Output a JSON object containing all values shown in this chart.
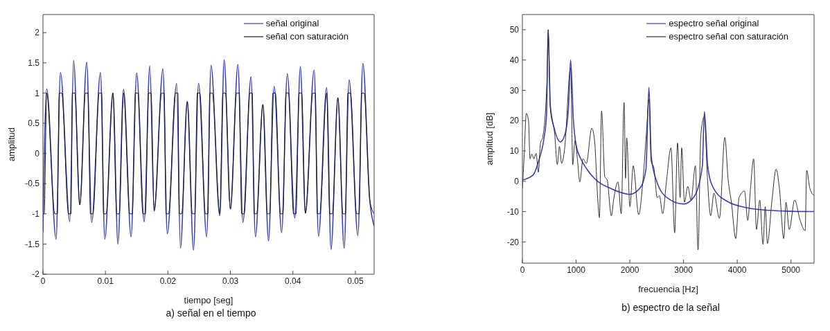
{
  "chart_data": [
    {
      "type": "line",
      "title": "a) señal en el tiempo",
      "xlabel": "tiempo [seg]",
      "ylabel": "amplitud",
      "xlim": [
        0,
        0.053
      ],
      "xticks": [
        0,
        0.01,
        0.02,
        0.03,
        0.04,
        0.05
      ],
      "ylim": [
        -2,
        2.3
      ],
      "yticks": [
        -2,
        -1.5,
        -1,
        -0.5,
        0,
        0.5,
        1,
        1.5,
        2
      ],
      "legend": "top right",
      "series": [
        {
          "name": "señal original",
          "color": "#3b3fb8",
          "x": [
            0,
            0.0006,
            0.0021,
            0.0028,
            0.0043,
            0.0049,
            0.0059,
            0.007,
            0.0078,
            0.0092,
            0.0099,
            0.0112,
            0.012,
            0.0129,
            0.0141,
            0.015,
            0.0162,
            0.0171,
            0.0178,
            0.0192,
            0.0199,
            0.0214,
            0.022,
            0.0231,
            0.0241,
            0.0249,
            0.0262,
            0.0269,
            0.0283,
            0.029,
            0.03,
            0.0312,
            0.032,
            0.0333,
            0.034,
            0.0352,
            0.0361,
            0.037,
            0.0382,
            0.0391,
            0.0403,
            0.0412,
            0.042,
            0.0434,
            0.0441,
            0.0454,
            0.0461,
            0.0472,
            0.0482,
            0.049,
            0.0504,
            0.0512,
            0.0523,
            0.053
          ],
          "values": [
            -1.3,
            1.07,
            -1.42,
            1.34,
            -1.13,
            1.54,
            -0.85,
            1.51,
            -1.14,
            1.34,
            -1.42,
            1,
            -1.5,
            1.06,
            -1.38,
            1.33,
            -1.13,
            1.45,
            -0.95,
            1.4,
            -1.33,
            1.16,
            -1.57,
            0.86,
            -1.6,
            1.16,
            -1.38,
            1.46,
            -1.03,
            1.55,
            -0.92,
            1.47,
            -1.14,
            1.27,
            -1.38,
            0.81,
            -1.45,
            1.11,
            -1.31,
            1.32,
            -1.07,
            1.44,
            -0.99,
            1.38,
            -1.37,
            1.09,
            -1.59,
            0.92,
            -1.57,
            1.22,
            -1.36,
            1.49,
            -0.77,
            -1.2
          ]
        },
        {
          "name": "señal con saturación",
          "color": "#1a1a1a",
          "x": [
            0,
            0.0002,
            0.0006,
            0.0019,
            0.0023,
            0.0026,
            0.003,
            0.0041,
            0.0045,
            0.0047,
            0.0051,
            0.0059,
            0.0068,
            0.0072,
            0.0076,
            0.008,
            0.009,
            0.0094,
            0.0097,
            0.0101,
            0.0112,
            0.0118,
            0.0122,
            0.0129,
            0.0139,
            0.0143,
            0.0148,
            0.0152,
            0.016,
            0.0164,
            0.0169,
            0.0173,
            0.0178,
            0.019,
            0.0194,
            0.0197,
            0.0201,
            0.0212,
            0.0216,
            0.0218,
            0.0222,
            0.0231,
            0.0239,
            0.0243,
            0.0247,
            0.0251,
            0.026,
            0.0264,
            0.0267,
            0.0271,
            0.0283,
            0.0288,
            0.0292,
            0.03,
            0.031,
            0.0314,
            0.0318,
            0.0322,
            0.0331,
            0.0335,
            0.0338,
            0.0342,
            0.0352,
            0.0359,
            0.0363,
            0.0368,
            0.0372,
            0.038,
            0.0384,
            0.0389,
            0.0393,
            0.0401,
            0.0405,
            0.041,
            0.0414,
            0.042,
            0.0432,
            0.0436,
            0.0439,
            0.0443,
            0.0454,
            0.0459,
            0.0463,
            0.0472,
            0.048,
            0.0484,
            0.0488,
            0.0492,
            0.0502,
            0.0506,
            0.051,
            0.0514,
            0.0523,
            0.053
          ],
          "values": [
            -1,
            -1,
            1,
            -1,
            -1,
            1,
            1,
            -1,
            -1,
            1,
            1,
            -0.85,
            1,
            1,
            -1,
            -1,
            1,
            1,
            -1,
            -1,
            1,
            -1,
            -1,
            1,
            -1,
            -1,
            1,
            1,
            -1,
            -1,
            1,
            1,
            -0.95,
            1,
            1,
            -1,
            -1,
            1,
            1,
            -1,
            -1,
            0.86,
            -1,
            -1,
            1,
            1,
            -1,
            -1,
            1,
            1,
            -1,
            1,
            1,
            -0.92,
            1,
            1,
            -1,
            -1,
            1,
            1,
            -1,
            -1,
            0.81,
            -1,
            -1,
            1,
            1,
            -1,
            -1,
            1,
            1,
            -1,
            -1,
            1,
            1,
            -0.99,
            1,
            1,
            -1,
            -1,
            1,
            -1,
            -1,
            0.92,
            -1,
            -1,
            1,
            1,
            -1,
            -1,
            1,
            1,
            -0.77,
            -1
          ]
        }
      ]
    },
    {
      "type": "line",
      "title": "b) espectro de la señal",
      "xlabel": "frecuencia [Hz]",
      "ylabel": "amplitud [dB]",
      "xlim": [
        0,
        5430
      ],
      "xticks": [
        0,
        1000,
        2000,
        3000,
        4000,
        5000
      ],
      "ylim": [
        -27,
        55
      ],
      "yticks": [
        -20,
        -10,
        0,
        10,
        20,
        30,
        40,
        50
      ],
      "legend": "top right",
      "series": [
        {
          "name": "espectro señal original",
          "color": "#3b3fb8",
          "x": [
            0,
            200,
            300,
            400,
            450,
            480,
            520,
            600,
            710,
            800,
            860,
            898,
            950,
            1000,
            1100,
            1200,
            1400,
            1600,
            1800,
            2000,
            2200,
            2300,
            2356,
            2400,
            2500,
            2700,
            3000,
            3200,
            3350,
            3388,
            3450,
            3550,
            3800,
            4200,
            4600,
            5000,
            5430
          ],
          "values": [
            0.4,
            2.1,
            6.6,
            14,
            22,
            50,
            25,
            17,
            13,
            16,
            25,
            40,
            20,
            12,
            7,
            4,
            0,
            -2,
            -3.5,
            -4.3,
            -2,
            4,
            31,
            8,
            0,
            -5.5,
            -7.5,
            -5,
            5,
            23,
            5,
            -2,
            -6.5,
            -8.8,
            -9.6,
            -9.9,
            -10
          ]
        },
        {
          "name": "espectro señal con saturación",
          "color": "#333333",
          "x": [
            0,
            32,
            73,
            114,
            142,
            175,
            215,
            256,
            296,
            337,
            378,
            459,
            480,
            520,
            601,
            650,
            690,
            731,
            784,
            898,
            938,
            979,
            1028,
            1068,
            1129,
            1190,
            1292,
            1344,
            1401,
            1434,
            1474,
            1535,
            1576,
            1657,
            1698,
            1779,
            1840,
            1893,
            1921,
            1942,
            2002,
            2063,
            2165,
            2246,
            2315,
            2356,
            2397,
            2449,
            2510,
            2551,
            2612,
            2681,
            2766,
            2835,
            2888,
            2937,
            2965,
            3018,
            3079,
            3140,
            3221,
            3270,
            3323,
            3388,
            3444,
            3505,
            3566,
            3668,
            3769,
            3830,
            3891,
            3972,
            4033,
            4135,
            4196,
            4248,
            4305,
            4358,
            4419,
            4480,
            4521,
            4562,
            4643,
            4724,
            4785,
            4866,
            4907,
            4968,
            5069,
            5171,
            5264,
            5292,
            5353,
            5430
          ],
          "values": [
            -2.4,
            8,
            22.4,
            20,
            7.4,
            9,
            7.4,
            9.2,
            3,
            12.6,
            14.5,
            34,
            50,
            24,
            15.6,
            5.5,
            11.5,
            5.9,
            10.4,
            37.4,
            5.5,
            13.4,
            6.6,
            -0.2,
            7.4,
            5.9,
            17.5,
            13.4,
            -5.4,
            -12,
            23.2,
            1.4,
            0.6,
            -11.4,
            -6.2,
            -0.2,
            -10.7,
            26,
            1,
            14.3,
            -8.4,
            5.1,
            -11,
            0.6,
            17.5,
            27,
            6.6,
            4.4,
            -5.4,
            -4.7,
            -10.7,
            -0.2,
            11,
            -17,
            12.6,
            -5.4,
            11,
            -6.9,
            -1.7,
            -6.2,
            5.1,
            -22.6,
            15.6,
            21.3,
            1.4,
            -11.4,
            -3.9,
            -12.2,
            14.5,
            0.6,
            -6.9,
            -18.9,
            -5.4,
            -3.2,
            -12.9,
            -2,
            7.4,
            -15.9,
            -6.2,
            -20.8,
            -8.4,
            -20.5,
            -6.9,
            4,
            -2.4,
            -18.9,
            -6.9,
            -15.9,
            -6.2,
            -12.9,
            -16.3,
            3.6,
            -2.4,
            -4.7
          ]
        }
      ]
    }
  ]
}
